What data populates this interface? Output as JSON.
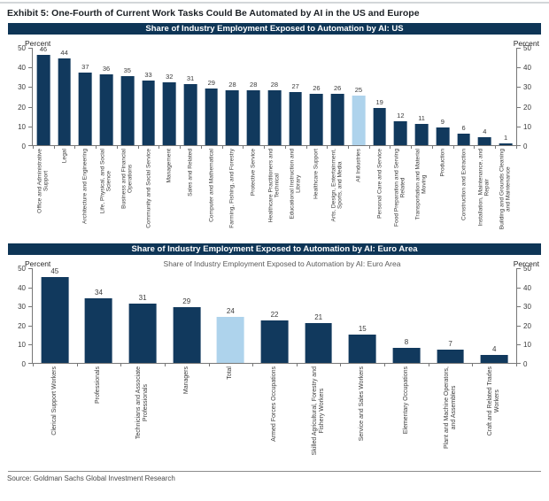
{
  "page": {
    "title": "Exhibit 5: One-Fourth of Current Work Tasks Could Be Automated by AI in the US and Europe",
    "source": "Source: Goldman Sachs Global Investment Research"
  },
  "colors": {
    "bar": "#11395d",
    "highlight_bar": "#aed3ec",
    "header_bg": "#0e3556",
    "header_text": "#ffffff"
  },
  "chart_data": [
    {
      "type": "bar",
      "header": "Share of Industry Employment Exposed to Automation by AI: US",
      "axis_label_left": "Percent",
      "axis_label_right": "Percent",
      "ylim": [
        0,
        50
      ],
      "yticks": [
        0,
        10,
        20,
        30,
        40,
        50
      ],
      "grid": false,
      "highlight_category": "All Industries",
      "categories": [
        "Office and Administrative\nSupport",
        "Legal",
        "Architecture and Engineering",
        "Life, Physical, and Social\nScience",
        "Business and Financial\nOperations",
        "Community and Social Service",
        "Management",
        "Sales and Related",
        "Computer and Mathematical",
        "Farming, Fishing, and Forestry",
        "Protective Service",
        "Healthcare Practitioners and\nTechnical",
        "Educational Instruction and\nLibrary",
        "Healthcare Support",
        "Arts, Design, Entertainment,\nSports, and Media",
        "All Industries",
        "Personal Care and Service",
        "Food Preparation and Serving\nRelated",
        "Transportation and Material\nMoving",
        "Production",
        "Construction and Extraction",
        "Installation, Maintenance, and\nRepair",
        "Building and Grounds Cleaning\nand Maintenance"
      ],
      "values": [
        46,
        44,
        37,
        36,
        35,
        33,
        32,
        31,
        29,
        28,
        28,
        28,
        27,
        26,
        26,
        25,
        19,
        12,
        11,
        9,
        6,
        4,
        1
      ]
    },
    {
      "type": "bar",
      "header": "Share of Industry Employment Exposed to Automation by AI: Euro Area",
      "title": "Share of Industry Employment Exposed to Automation by AI: Euro Area",
      "axis_label_left": "Percent",
      "axis_label_right": "Percent",
      "ylim": [
        0,
        50
      ],
      "yticks": [
        0,
        10,
        20,
        30,
        40,
        50
      ],
      "grid": false,
      "highlight_category": "Total",
      "categories": [
        "Clerical Support Workers",
        "Professionals",
        "Technicians and Associate\nProfessionals",
        "Managers",
        "Total",
        "Armed Forces Occupations",
        "Skilled Agricultural, Forestry and\nFishery Workers",
        "Service and Sales Workers",
        "Elementary Occupations",
        "Plant and Machine Operators,\nand Assemblers",
        "Craft and Related Trades\nWorkers"
      ],
      "values": [
        45,
        34,
        31,
        29,
        24,
        22,
        21,
        15,
        8,
        7,
        4
      ]
    }
  ]
}
